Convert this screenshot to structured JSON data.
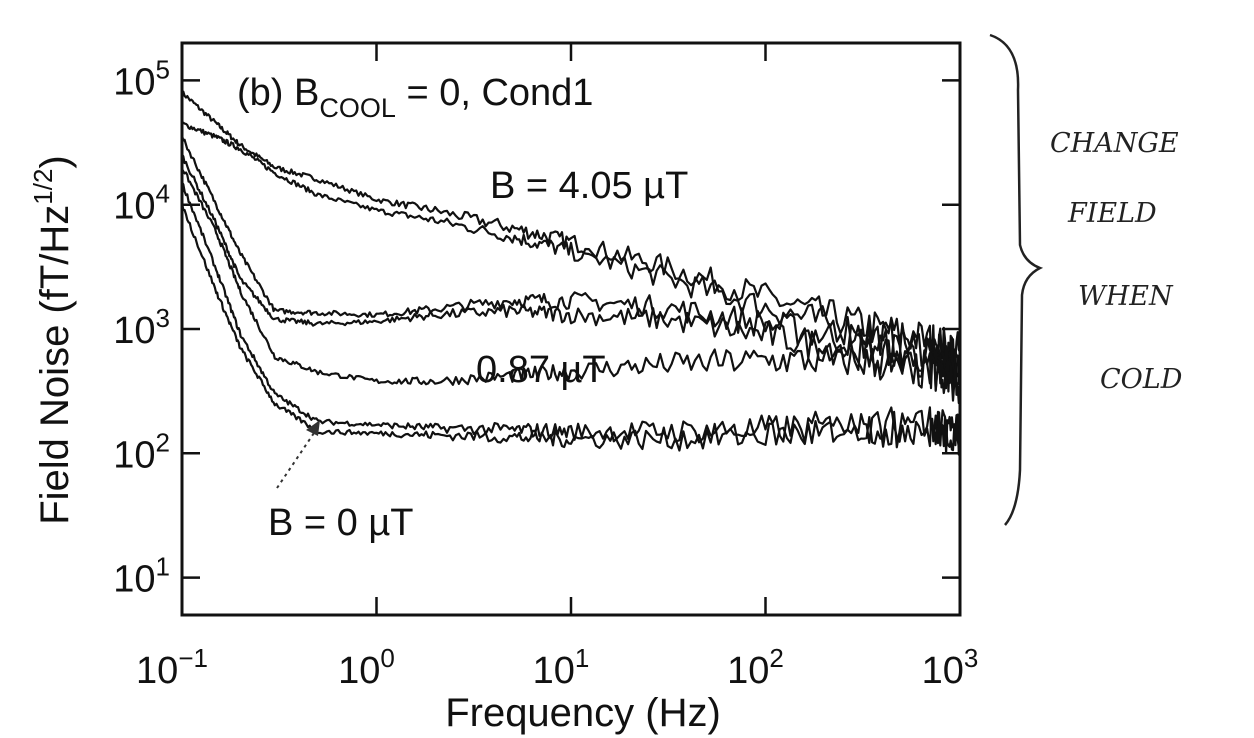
{
  "chart_data": {
    "type": "line",
    "title": "(b) B",
    "title_sub": "COOL",
    "title_rest": " = 0, Cond1",
    "xlabel": "Frequency (Hz)",
    "ylabel": "Field Noise (fT/Hz",
    "ylabel_exp": "1/2",
    "ylabel_close": ")",
    "x_scale": "log",
    "y_scale": "log",
    "xlim": [
      0.1,
      1000
    ],
    "ylim": [
      5,
      200000
    ],
    "grid": false,
    "x_ticks": [
      {
        "value": 0.1,
        "base": "10",
        "exp": "−1"
      },
      {
        "value": 1,
        "base": "10",
        "exp": "0"
      },
      {
        "value": 10,
        "base": "10",
        "exp": "1"
      },
      {
        "value": 100,
        "base": "10",
        "exp": "2"
      },
      {
        "value": 1000,
        "base": "10",
        "exp": "3"
      }
    ],
    "y_ticks": [
      {
        "value": 10,
        "base": "10",
        "exp": "1"
      },
      {
        "value": 100,
        "base": "10",
        "exp": "2"
      },
      {
        "value": 1000,
        "base": "10",
        "exp": "3"
      },
      {
        "value": 10000,
        "base": "10",
        "exp": "4"
      },
      {
        "value": 100000,
        "base": "10",
        "exp": "5"
      }
    ],
    "annotations": [
      {
        "text": "B = 4.05 µT"
      },
      {
        "text": "0.87 µT"
      },
      {
        "text": "B = 0 µT"
      }
    ],
    "handwritten_note": [
      "CHANGE",
      "FIELD",
      "WHEN",
      "COLD"
    ],
    "series": [
      {
        "group": "4.05 µT",
        "x": [
          0.1,
          0.15,
          0.2,
          0.3,
          0.5,
          1,
          2,
          5,
          10,
          30,
          100,
          300,
          700,
          1000
        ],
        "y": [
          80000,
          45000,
          30000,
          20000,
          16000,
          11000,
          9000,
          6500,
          5000,
          3200,
          1800,
          1100,
          800,
          650
        ]
      },
      {
        "group": "4.05 µT",
        "x": [
          0.1,
          0.15,
          0.2,
          0.3,
          0.5,
          1,
          2,
          5,
          10,
          30,
          100,
          300,
          700,
          1000
        ],
        "y": [
          45000,
          35000,
          28000,
          18000,
          12000,
          9000,
          7500,
          5500,
          4200,
          2600,
          1500,
          950,
          700,
          550
        ]
      },
      {
        "group": "0.87 µT",
        "x": [
          0.1,
          0.15,
          0.2,
          0.3,
          0.5,
          1,
          2,
          5,
          10,
          30,
          100,
          300,
          700,
          1000
        ],
        "y": [
          35000,
          10000,
          4000,
          1400,
          1350,
          1300,
          1450,
          1700,
          1700,
          1500,
          1100,
          800,
          600,
          500
        ]
      },
      {
        "group": "0.87 µT",
        "x": [
          0.1,
          0.15,
          0.2,
          0.3,
          0.5,
          1,
          2,
          5,
          10,
          30,
          100,
          300,
          700,
          1000
        ],
        "y": [
          25000,
          7000,
          2500,
          1200,
          1100,
          1150,
          1300,
          1400,
          1300,
          1200,
          900,
          650,
          480,
          400
        ]
      },
      {
        "group": "0.87 µT",
        "x": [
          0.1,
          0.15,
          0.2,
          0.3,
          0.5,
          1,
          2,
          5,
          10,
          30,
          100,
          300,
          700,
          1000
        ],
        "y": [
          20000,
          6000,
          2000,
          600,
          450,
          380,
          380,
          420,
          460,
          520,
          560,
          560,
          450,
          350
        ]
      },
      {
        "group": "0 µT",
        "x": [
          0.1,
          0.15,
          0.2,
          0.3,
          0.5,
          1,
          2,
          5,
          10,
          30,
          100,
          300,
          700,
          1000
        ],
        "y": [
          15000,
          3000,
          900,
          300,
          180,
          170,
          160,
          155,
          150,
          150,
          155,
          165,
          170,
          140
        ]
      },
      {
        "group": "0 µT",
        "x": [
          0.1,
          0.15,
          0.2,
          0.3,
          0.5,
          1,
          2,
          5,
          10,
          30,
          100,
          300,
          700,
          1000
        ],
        "y": [
          10000,
          2000,
          700,
          250,
          150,
          145,
          140,
          135,
          130,
          130,
          140,
          150,
          160,
          130
        ]
      }
    ]
  }
}
